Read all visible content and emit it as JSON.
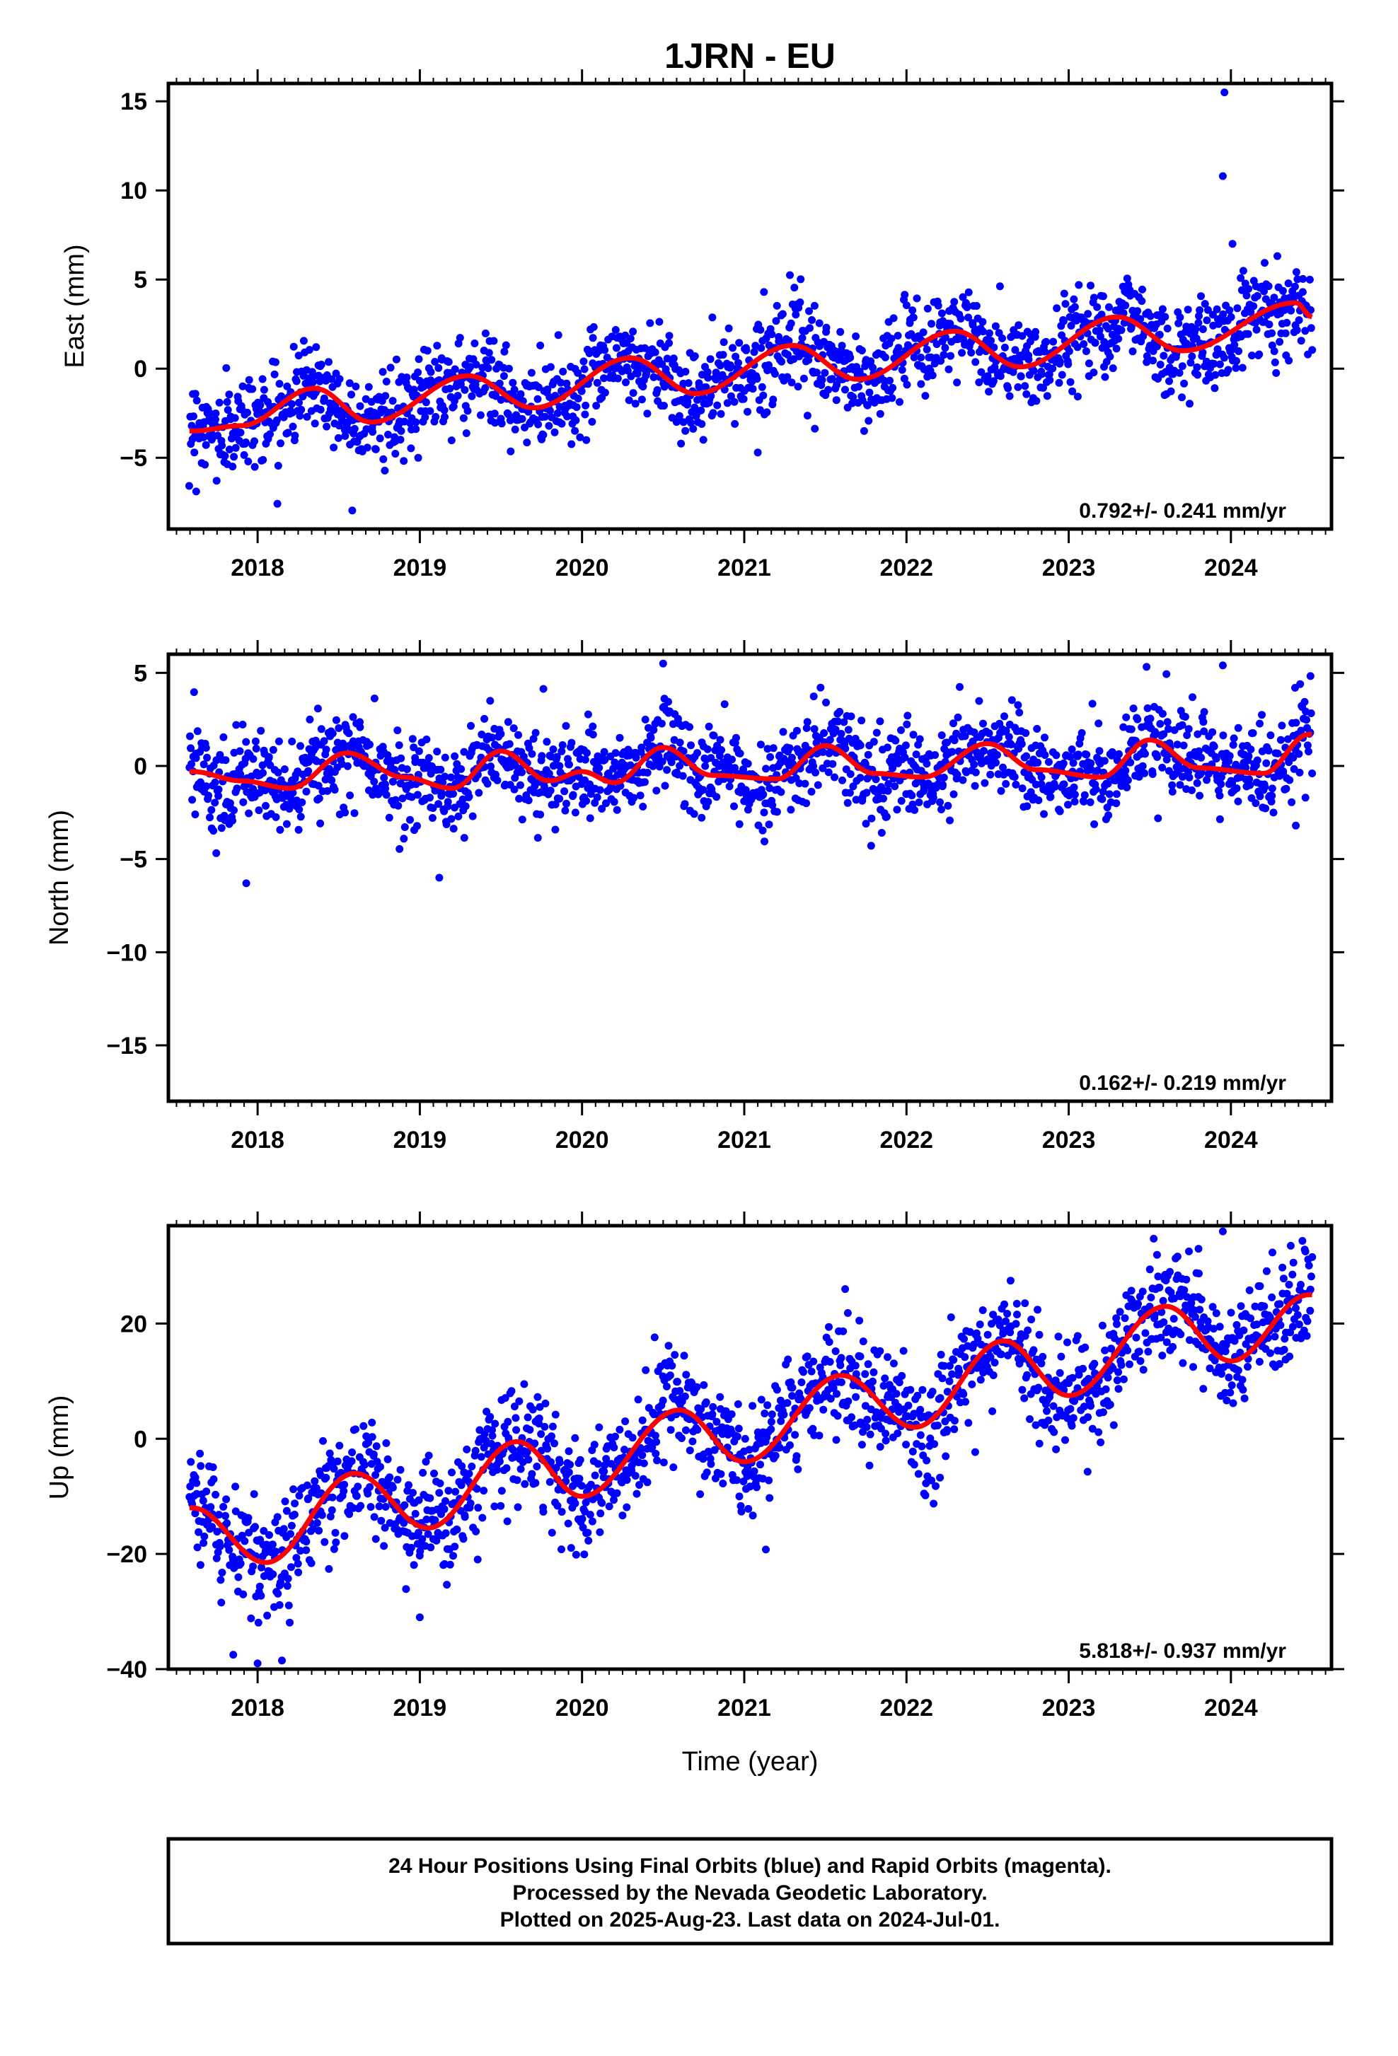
{
  "title": "1JRN - EU",
  "xlabel": "Time (year)",
  "colors": {
    "points": "#0000ff",
    "fit": "#ff0000"
  },
  "footer": {
    "line1": "24 Hour Positions Using Final Orbits (blue) and Rapid Orbits (magenta).",
    "line2": "Processed by the Nevada Geodetic Laboratory.",
    "line3": "Plotted on 2025-Aug-23. Last data on 2024-Jul-01."
  },
  "chart_data": [
    {
      "type": "scatter",
      "panel": "east",
      "ylabel": "East (mm)",
      "xlim": [
        2017.45,
        2024.62
      ],
      "ylim": [
        -9,
        16
      ],
      "xticks": [
        2018,
        2019,
        2020,
        2021,
        2022,
        2023,
        2024
      ],
      "yticks": [
        -5,
        0,
        5,
        10,
        15
      ],
      "rate_label": "0.792+/- 0.241 mm/yr",
      "trend": {
        "x": [
          2017.6,
          2017.9,
          2018.35,
          2018.7,
          2019.3,
          2019.7,
          2020.3,
          2020.7,
          2021.3,
          2021.7,
          2022.3,
          2022.7,
          2023.3,
          2023.7,
          2024.4,
          2024.5
        ],
        "y": [
          -3.5,
          -3.2,
          -1.1,
          -3.0,
          -0.4,
          -2.2,
          0.6,
          -1.4,
          1.3,
          -0.6,
          2.1,
          0.1,
          2.9,
          1.0,
          3.7,
          2.9
        ]
      },
      "scatter_sd": 1.25,
      "outliers": {
        "x": [
          2023.96,
          2023.95,
          2024.01
        ],
        "y": [
          15.5,
          10.8,
          7.0
        ]
      }
    },
    {
      "type": "scatter",
      "panel": "north",
      "ylabel": "North (mm)",
      "xlim": [
        2017.45,
        2024.62
      ],
      "ylim": [
        -18,
        6
      ],
      "xticks": [
        2018,
        2019,
        2020,
        2021,
        2022,
        2023,
        2024
      ],
      "yticks": [
        -15,
        -10,
        -5,
        0,
        5
      ],
      "rate_label": "0.162+/- 0.219 mm/yr",
      "trend": {
        "x": [
          2017.6,
          2017.9,
          2018.2,
          2018.55,
          2018.9,
          2019.2,
          2019.5,
          2019.8,
          2020.0,
          2020.2,
          2020.5,
          2020.8,
          2021.2,
          2021.5,
          2021.8,
          2022.1,
          2022.5,
          2022.8,
          2023.2,
          2023.5,
          2023.8,
          2024.2,
          2024.48
        ],
        "y": [
          -0.3,
          -0.8,
          -1.2,
          0.7,
          -0.6,
          -1.2,
          0.8,
          -0.8,
          -0.3,
          -0.9,
          1.0,
          -0.5,
          -0.7,
          1.1,
          -0.4,
          -0.6,
          1.2,
          -0.2,
          -0.6,
          1.4,
          -0.1,
          -0.4,
          1.7
        ]
      },
      "scatter_sd": 1.2,
      "outliers": {
        "x": [
          2017.93,
          2019.12,
          2020.5,
          2023.95,
          2024.4
        ],
        "y": [
          -6.3,
          -6.0,
          5.5,
          5.4,
          -3.2
        ]
      }
    },
    {
      "type": "scatter",
      "panel": "up",
      "ylabel": "Up (mm)",
      "xlim": [
        2017.45,
        2024.62
      ],
      "ylim": [
        -40,
        37
      ],
      "xticks": [
        2018,
        2019,
        2020,
        2021,
        2022,
        2023,
        2024
      ],
      "yticks": [
        -40,
        -20,
        0,
        20
      ],
      "rate_label": "5.818+/- 0.937 mm/yr",
      "trend": {
        "x": [
          2017.6,
          2018.05,
          2018.6,
          2019.05,
          2019.6,
          2020.0,
          2020.6,
          2021.0,
          2021.6,
          2022.05,
          2022.6,
          2023.0,
          2023.6,
          2024.0,
          2024.48
        ],
        "y": [
          -12,
          -21.5,
          -6,
          -15.5,
          -0.5,
          -10,
          5,
          -4,
          11,
          2,
          17,
          7.5,
          23,
          13.5,
          25
        ]
      },
      "scatter_sd": 4.8,
      "outliers": {
        "x": [
          2017.85,
          2018.15,
          2019.0,
          2023.95,
          2023.8,
          2018.0
        ],
        "y": [
          -37.5,
          -38.5,
          -31.0,
          36.0,
          33.0,
          -39.0
        ]
      }
    }
  ]
}
